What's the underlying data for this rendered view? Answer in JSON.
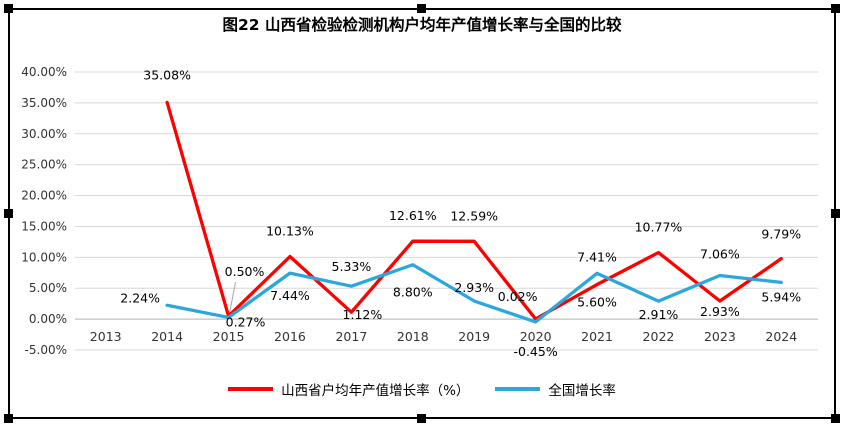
{
  "frame": {
    "border_color": "#000000",
    "handle_color": "#000000",
    "selected": true
  },
  "chart_data": {
    "type": "line",
    "title": "图22 山西省检验检测机构户均年产值增长率与全国的比较",
    "categories": [
      "2013",
      "2014",
      "2015",
      "2016",
      "2017",
      "2018",
      "2019",
      "2020",
      "2021",
      "2022",
      "2023",
      "2024"
    ],
    "y_axis": {
      "min": -5,
      "max": 40,
      "step": 5,
      "ticks": [
        "40.00%",
        "35.00%",
        "30.00%",
        "25.00%",
        "20.00%",
        "15.00%",
        "10.00%",
        "5.00%",
        "0.00%",
        "-5.00%"
      ]
    },
    "gridlines": true,
    "legend_position": "bottom",
    "grid_color": "#d9d9d9",
    "axis_line_color": "#b3b3b3",
    "series": [
      {
        "name": "山西省户均年产值增长率（%）",
        "color": "#FF0000",
        "values": [
          null,
          35.08,
          0.5,
          10.13,
          1.12,
          12.61,
          12.59,
          0.02,
          5.6,
          10.77,
          2.93,
          9.79
        ],
        "labels": [
          null,
          "35.08%",
          "0.50%",
          "10.13%",
          "1.12%",
          "12.61%",
          "12.59%",
          "0.02%",
          "5.60%",
          "10.77%",
          "2.93%",
          "9.79%"
        ],
        "label_offsets": [
          null,
          [
            0,
            -23
          ],
          [
            16,
            -40
          ],
          [
            0,
            -21
          ],
          [
            11,
            7
          ],
          [
            0,
            -21
          ],
          [
            0,
            -21
          ],
          [
            -18,
            -18
          ],
          [
            0,
            22
          ],
          [
            0,
            -21
          ],
          [
            0,
            15
          ],
          [
            0,
            -20
          ]
        ],
        "leader_index": 2
      },
      {
        "name": "全国增长率",
        "color": "#2BA7DE",
        "values": [
          null,
          2.24,
          0.27,
          7.44,
          5.33,
          8.8,
          2.93,
          -0.45,
          7.41,
          2.91,
          7.06,
          5.94
        ],
        "labels": [
          null,
          "2.24%",
          "0.27%",
          "7.44%",
          "5.33%",
          "8.80%",
          "2.93%",
          "-0.45%",
          "7.41%",
          "2.91%",
          "7.06%",
          "5.94%"
        ],
        "label_offsets": [
          null,
          [
            -27,
            -3
          ],
          [
            17,
            9
          ],
          [
            0,
            27
          ],
          [
            0,
            -15
          ],
          [
            0,
            32
          ],
          [
            0,
            -9
          ],
          [
            0,
            34
          ],
          [
            0,
            -12
          ],
          [
            0,
            18
          ],
          [
            0,
            -17
          ],
          [
            0,
            19
          ]
        ]
      }
    ]
  }
}
